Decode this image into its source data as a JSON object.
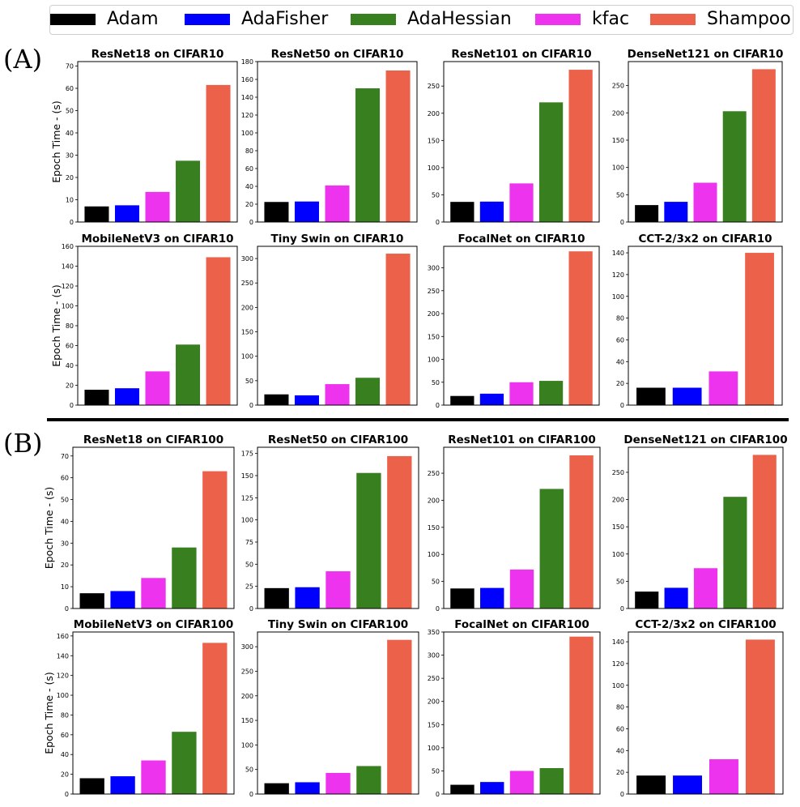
{
  "legend": {
    "entries": [
      {
        "label": "Adam",
        "color": "#000000"
      },
      {
        "label": "AdaFisher",
        "color": "#0000ff"
      },
      {
        "label": "AdaHessian",
        "color": "#38801f"
      },
      {
        "label": "kfac",
        "color": "#ee33ee"
      },
      {
        "label": "Shampoo",
        "color": "#ec614a"
      }
    ]
  },
  "sections": [
    {
      "label": "(A)"
    },
    {
      "label": "(B)"
    }
  ],
  "chart_data": [
    {
      "type": "bar",
      "title": "ResNet18 on CIFAR10",
      "ylabel": "Epoch Time - (s)",
      "categories": [
        "Adam",
        "AdaFisher",
        "AdaHessian",
        "kfac",
        "Shampoo"
      ],
      "order": [
        "Adam",
        "AdaFisher",
        "kfac",
        "AdaHessian",
        "Shampoo"
      ],
      "values": [
        7,
        7.5,
        27.5,
        13.5,
        61.5
      ],
      "ylim": [
        0,
        72
      ],
      "yticks": [
        0,
        10,
        20,
        30,
        40,
        50,
        60,
        70
      ]
    },
    {
      "type": "bar",
      "title": "ResNet50 on CIFAR10",
      "ylabel": "",
      "categories": [
        "Adam",
        "AdaFisher",
        "AdaHessian",
        "kfac",
        "Shampoo"
      ],
      "order": [
        "Adam",
        "AdaFisher",
        "kfac",
        "AdaHessian",
        "Shampoo"
      ],
      "values": [
        22.5,
        23,
        150,
        41,
        170
      ],
      "ylim": [
        0,
        180
      ],
      "yticks": [
        0,
        20,
        40,
        60,
        80,
        100,
        120,
        140,
        160,
        180
      ]
    },
    {
      "type": "bar",
      "title": "ResNet101 on CIFAR10",
      "ylabel": "",
      "categories": [
        "Adam",
        "AdaFisher",
        "AdaHessian",
        "kfac",
        "Shampoo"
      ],
      "order": [
        "Adam",
        "AdaFisher",
        "kfac",
        "AdaHessian",
        "Shampoo"
      ],
      "values": [
        37,
        37.5,
        220,
        71,
        280
      ],
      "ylim": [
        0,
        295
      ],
      "yticks": [
        0,
        50,
        100,
        150,
        200,
        250
      ]
    },
    {
      "type": "bar",
      "title": "DenseNet121 on CIFAR10",
      "ylabel": "",
      "categories": [
        "Adam",
        "AdaFisher",
        "AdaHessian",
        "kfac",
        "Shampoo"
      ],
      "order": [
        "Adam",
        "AdaFisher",
        "kfac",
        "AdaHessian",
        "Shampoo"
      ],
      "values": [
        31,
        37,
        203,
        72,
        280
      ],
      "ylim": [
        0,
        294
      ],
      "yticks": [
        0,
        50,
        100,
        150,
        200,
        250
      ]
    },
    {
      "type": "bar",
      "title": "MobileNetV3 on CIFAR10",
      "ylabel": "Epoch Time - (s)",
      "categories": [
        "Adam",
        "AdaFisher",
        "AdaHessian",
        "kfac",
        "Shampoo"
      ],
      "order": [
        "Adam",
        "AdaFisher",
        "kfac",
        "AdaHessian",
        "Shampoo"
      ],
      "values": [
        15.5,
        17,
        61,
        34,
        149
      ],
      "ylim": [
        0,
        160
      ],
      "yticks": [
        0,
        20,
        40,
        60,
        80,
        100,
        120,
        140,
        160
      ]
    },
    {
      "type": "bar",
      "title": "Tiny Swin on CIFAR10",
      "ylabel": "",
      "categories": [
        "Adam",
        "AdaFisher",
        "AdaHessian",
        "kfac",
        "Shampoo"
      ],
      "order": [
        "Adam",
        "AdaFisher",
        "kfac",
        "AdaHessian",
        "Shampoo"
      ],
      "values": [
        22,
        20,
        56,
        43,
        310
      ],
      "ylim": [
        0,
        325
      ],
      "yticks": [
        0,
        50,
        100,
        150,
        200,
        250,
        300
      ]
    },
    {
      "type": "bar",
      "title": "FocalNet on CIFAR10",
      "ylabel": "",
      "categories": [
        "Adam",
        "AdaFisher",
        "AdaHessian",
        "kfac",
        "Shampoo"
      ],
      "order": [
        "Adam",
        "AdaFisher",
        "kfac",
        "AdaHessian",
        "Shampoo"
      ],
      "values": [
        20,
        25,
        53,
        50,
        336
      ],
      "ylim": [
        0,
        347
      ],
      "yticks": [
        0,
        50,
        100,
        150,
        200,
        250,
        300
      ]
    },
    {
      "type": "bar",
      "title": "CCT-2/3x2 on CIFAR10",
      "ylabel": "",
      "categories": [
        "Adam",
        "AdaFisher",
        "kfac",
        "Shampoo"
      ],
      "order": [
        "Adam",
        "AdaFisher",
        "kfac",
        "Shampoo"
      ],
      "values": [
        16,
        16,
        31,
        140
      ],
      "ylim": [
        0,
        146
      ],
      "yticks": [
        0,
        20,
        40,
        60,
        80,
        100,
        120,
        140
      ]
    },
    {
      "type": "bar",
      "title": "ResNet18 on CIFAR100",
      "ylabel": "Epoch Time - (s)",
      "categories": [
        "Adam",
        "AdaFisher",
        "AdaHessian",
        "kfac",
        "Shampoo"
      ],
      "order": [
        "Adam",
        "AdaFisher",
        "kfac",
        "AdaHessian",
        "Shampoo"
      ],
      "values": [
        7,
        8,
        28,
        14,
        63
      ],
      "ylim": [
        0,
        74
      ],
      "yticks": [
        0,
        10,
        20,
        30,
        40,
        50,
        60,
        70
      ]
    },
    {
      "type": "bar",
      "title": "ResNet50 on CIFAR100",
      "ylabel": "",
      "categories": [
        "Adam",
        "AdaFisher",
        "AdaHessian",
        "kfac",
        "Shampoo"
      ],
      "order": [
        "Adam",
        "AdaFisher",
        "kfac",
        "AdaHessian",
        "Shampoo"
      ],
      "values": [
        23,
        24,
        153,
        42,
        172
      ],
      "ylim": [
        0,
        182
      ],
      "yticks": [
        0,
        25,
        50,
        75,
        100,
        125,
        150,
        175
      ]
    },
    {
      "type": "bar",
      "title": "ResNet101 on CIFAR100",
      "ylabel": "",
      "categories": [
        "Adam",
        "AdaFisher",
        "AdaHessian",
        "kfac",
        "Shampoo"
      ],
      "order": [
        "Adam",
        "AdaFisher",
        "kfac",
        "AdaHessian",
        "Shampoo"
      ],
      "values": [
        37,
        38,
        221,
        72,
        283
      ],
      "ylim": [
        0,
        298
      ],
      "yticks": [
        0,
        50,
        100,
        150,
        200,
        250
      ]
    },
    {
      "type": "bar",
      "title": "DenseNet121 on CIFAR100",
      "ylabel": "",
      "categories": [
        "Adam",
        "AdaFisher",
        "AdaHessian",
        "kfac",
        "Shampoo"
      ],
      "order": [
        "Adam",
        "AdaFisher",
        "kfac",
        "AdaHessian",
        "Shampoo"
      ],
      "values": [
        31,
        38,
        205,
        74,
        282
      ],
      "ylim": [
        0,
        296
      ],
      "yticks": [
        0,
        50,
        100,
        150,
        200,
        250
      ]
    },
    {
      "type": "bar",
      "title": "MobileNetV3 on CIFAR100",
      "ylabel": "Epoch Time - (s)",
      "categories": [
        "Adam",
        "AdaFisher",
        "AdaHessian",
        "kfac",
        "Shampoo"
      ],
      "order": [
        "Adam",
        "AdaFisher",
        "kfac",
        "AdaHessian",
        "Shampoo"
      ],
      "values": [
        16,
        18,
        63,
        34,
        153
      ],
      "ylim": [
        0,
        164
      ],
      "yticks": [
        0,
        20,
        40,
        60,
        80,
        100,
        120,
        140,
        160
      ]
    },
    {
      "type": "bar",
      "title": "Tiny Swin on CIFAR100",
      "ylabel": "",
      "categories": [
        "Adam",
        "AdaFisher",
        "AdaHessian",
        "kfac",
        "Shampoo"
      ],
      "order": [
        "Adam",
        "AdaFisher",
        "kfac",
        "AdaHessian",
        "Shampoo"
      ],
      "values": [
        22,
        24,
        57,
        43,
        314
      ],
      "ylim": [
        0,
        330
      ],
      "yticks": [
        0,
        50,
        100,
        150,
        200,
        250,
        300
      ]
    },
    {
      "type": "bar",
      "title": "FocalNet on CIFAR100",
      "ylabel": "",
      "categories": [
        "Adam",
        "AdaFisher",
        "AdaHessian",
        "kfac",
        "Shampoo"
      ],
      "order": [
        "Adam",
        "AdaFisher",
        "kfac",
        "AdaHessian",
        "Shampoo"
      ],
      "values": [
        20,
        26,
        56,
        50,
        340
      ],
      "ylim": [
        0,
        350
      ],
      "yticks": [
        0,
        50,
        100,
        150,
        200,
        250,
        300,
        350
      ]
    },
    {
      "type": "bar",
      "title": "CCT-2/3x2 on CIFAR100",
      "ylabel": "",
      "categories": [
        "Adam",
        "AdaFisher",
        "kfac",
        "Shampoo"
      ],
      "order": [
        "Adam",
        "AdaFisher",
        "kfac",
        "Shampoo"
      ],
      "values": [
        17,
        17,
        32,
        142
      ],
      "ylim": [
        0,
        149
      ],
      "yticks": [
        0,
        20,
        40,
        60,
        80,
        100,
        120,
        140
      ]
    }
  ]
}
